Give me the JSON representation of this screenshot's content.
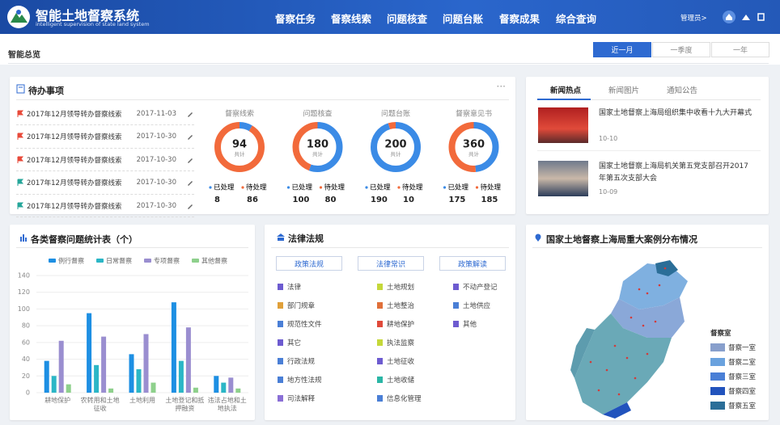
{
  "header": {
    "title": "智能土地督察系统",
    "subtitle": "intelligent supervision of state land system",
    "nav": [
      "督察任务",
      "督察线索",
      "问题核查",
      "问题台账",
      "督察成果",
      "综合查询"
    ],
    "user": "管理员>"
  },
  "overview": {
    "title": "智能总览",
    "filters": [
      "近一月",
      "一季度",
      "一年"
    ]
  },
  "todo": {
    "title": "待办事项",
    "items": [
      {
        "text": "2017年12月领导转办督察线索",
        "date": "2017-11-03"
      },
      {
        "text": "2017年12月领导转办督察线索",
        "date": "2017-10-30"
      },
      {
        "text": "2017年12月领导转办督察线索",
        "date": "2017-10-30"
      },
      {
        "text": "2017年12月领导转办督察线索",
        "date": "2017-10-30"
      },
      {
        "text": "2017年12月领导转办督察线索",
        "date": "2017-10-30"
      }
    ],
    "stats": [
      {
        "label": "督察线索",
        "total": 94,
        "total_label": "共计",
        "done_label": "已处理",
        "done": 8,
        "pending_label": "待处理",
        "pending": 86
      },
      {
        "label": "问题核查",
        "total": 180,
        "total_label": "共计",
        "done_label": "已处理",
        "done": 100,
        "pending_label": "待处理",
        "pending": 80
      },
      {
        "label": "问题台账",
        "total": 200,
        "total_label": "共计",
        "done_label": "已处理",
        "done": 190,
        "pending_label": "待处理",
        "pending": 10
      },
      {
        "label": "督察意见书",
        "total": 360,
        "total_label": "共计",
        "done_label": "已处理",
        "done": 175,
        "pending_label": "待处理",
        "pending": 185
      }
    ],
    "done_color": "#3b8be6",
    "pending_color": "#f26a3b"
  },
  "news": {
    "tabs": [
      "新闻热点",
      "新闻图片",
      "通知公告"
    ],
    "items": [
      {
        "title": "国家土地督察上海局组织集中收看十九大开幕式",
        "date": "10-10"
      },
      {
        "title": "国家土地督察上海局机关第五党支部召开2017年第五次支部大会",
        "date": "10-09"
      }
    ]
  },
  "chart_data": {
    "type": "bar",
    "title": "各类督察问题统计表（个）",
    "categories": [
      "耕地保护",
      "农转用和土地征收",
      "土地利用",
      "土地登记和抵押融资",
      "违法占地和土地执法"
    ],
    "series": [
      {
        "name": "例行督察",
        "color": "#1d8fe3",
        "values": [
          38,
          95,
          46,
          108,
          20
        ]
      },
      {
        "name": "日常督察",
        "color": "#2bb6c6",
        "values": [
          20,
          33,
          28,
          38,
          12
        ]
      },
      {
        "name": "专项督察",
        "color": "#9a8ed0",
        "values": [
          62,
          67,
          70,
          78,
          18
        ]
      },
      {
        "name": "其他督察",
        "color": "#8ed08c",
        "values": [
          10,
          5,
          12,
          6,
          5
        ]
      }
    ],
    "ylim": [
      0,
      140
    ],
    "yticks": [
      0,
      20,
      40,
      60,
      80,
      100,
      120,
      140
    ],
    "grid": true
  },
  "law": {
    "title": "法律法规",
    "buttons": [
      "政策法规",
      "法律常识",
      "政策解读"
    ],
    "columns": [
      [
        "法律",
        "部门规章",
        "规范性文件",
        "其它",
        "行政法规",
        "地方性法规",
        "司法解释"
      ],
      [
        "土地规划",
        "土地整治",
        "耕地保护",
        "执法监察",
        "土地征收",
        "土地收储",
        "信息化管理"
      ],
      [
        "不动产登记",
        "土地供应",
        "其他"
      ]
    ]
  },
  "map": {
    "title": "国家土地督察上海局重大案例分布情况",
    "legend_title": "督察室",
    "legend": [
      {
        "name": "督察一室",
        "color": "#889fcc"
      },
      {
        "name": "督察二室",
        "color": "#6aa2de"
      },
      {
        "name": "督察三室",
        "color": "#4a7fd6"
      },
      {
        "name": "督察四室",
        "color": "#2153bd"
      },
      {
        "name": "督察五室",
        "color": "#2b6e98"
      }
    ]
  }
}
